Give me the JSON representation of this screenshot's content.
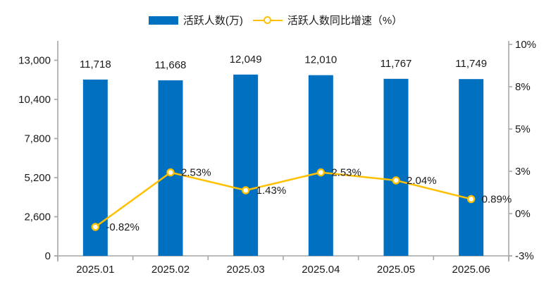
{
  "legend": {
    "bar_label": "活跃人数(万)",
    "line_label": "活跃人数同比增速（%）"
  },
  "colors": {
    "bar": "#0070C0",
    "line": "#FFC000",
    "marker_fill": "#FFFFFF",
    "axis": "#A6A6A6",
    "text": "#1A1A1A"
  },
  "chart_data": {
    "type": "bar",
    "subtype": "bar-line-combo",
    "categories": [
      "2025.01",
      "2025.02",
      "2025.03",
      "2025.04",
      "2025.05",
      "2025.06"
    ],
    "series": [
      {
        "name": "活跃人数(万)",
        "type": "bar",
        "axis": "left",
        "values": [
          11718,
          11668,
          12049,
          12010,
          11767,
          11749
        ],
        "labels": [
          "11,718",
          "11,668",
          "12,049",
          "12,010",
          "11,767",
          "11,749"
        ]
      },
      {
        "name": "活跃人数同比增速（%）",
        "type": "line",
        "axis": "right",
        "values": [
          -0.82,
          2.53,
          1.43,
          2.53,
          2.04,
          0.89
        ],
        "labels": [
          "-0.82%",
          "2.53%",
          "1.43%",
          "2.53%",
          "2.04%",
          "0.89%"
        ]
      }
    ],
    "left_axis": {
      "tick_values": [
        0,
        2600,
        5200,
        7800,
        10400,
        13000
      ],
      "tick_labels": [
        "0",
        "2,600",
        "5,200",
        "7,800",
        "10,400",
        "13,000"
      ],
      "range": [
        0,
        13000
      ]
    },
    "right_axis": {
      "tick_labels": [
        "-3%",
        "0%",
        "3%",
        "5%",
        "8%",
        "10%"
      ],
      "tick_values": [
        -2.6,
        0,
        2.6,
        5.2,
        7.8,
        10.4
      ],
      "range": [
        -2.6,
        10.4
      ]
    },
    "grid": false,
    "legend_position": "top"
  }
}
